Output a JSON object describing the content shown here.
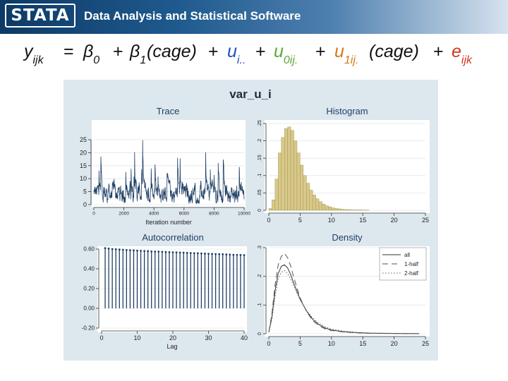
{
  "header": {
    "logo_text": "STATA",
    "tagline": "Data Analysis and Statistical Software",
    "colors": {
      "dark": "#0d3a66",
      "light": "#d7e3ef"
    }
  },
  "equation": {
    "y": "y",
    "y_sub": "ijk",
    "b0": "β",
    "b0_sub": "0",
    "b1": "β",
    "b1_sub": "1",
    "cage": "(cage)",
    "u": "u",
    "u_sub": "i..",
    "u0": "u",
    "u0_sub": "0ij.",
    "u1": "u",
    "u1_sub": "1ij.",
    "e": "e",
    "e_sub": "ijk",
    "colors": {
      "u": "#1f4fbf",
      "u0": "#5aa832",
      "u1": "#d07a12",
      "e": "#d0341c"
    }
  },
  "chart_data": [
    {
      "type": "line",
      "panel_title": "Trace",
      "figure_title": "var_u_i",
      "xlabel": "Iteration number",
      "xlim": [
        0,
        10000
      ],
      "ylim": [
        0,
        25
      ],
      "xticks": [
        "0",
        "2000",
        "4000",
        "6000",
        "8000",
        "10000"
      ],
      "yticks": [
        "0",
        "5",
        "10",
        "15",
        "20",
        "25"
      ],
      "typical_range": [
        1,
        10
      ],
      "approx_peak": 25,
      "color": "#1f3f66"
    },
    {
      "type": "bar",
      "panel_title": "Histogram",
      "xlim": [
        0,
        25
      ],
      "ylim": [
        0,
        0.25
      ],
      "xticks": [
        "0",
        "5",
        "10",
        "15",
        "20",
        "25"
      ],
      "yticks": [
        "0",
        ".05",
        ".1",
        ".15",
        ".2",
        ".25"
      ],
      "bin_width": 0.5,
      "values": [
        0.005,
        0.03,
        0.09,
        0.165,
        0.21,
        0.235,
        0.24,
        0.23,
        0.2,
        0.165,
        0.13,
        0.1,
        0.078,
        0.058,
        0.044,
        0.033,
        0.025,
        0.018,
        0.013,
        0.01,
        0.007,
        0.005,
        0.004,
        0.003,
        0.002,
        0.002,
        0.001,
        0.001,
        0.001,
        0.001,
        0.0005,
        0.0005
      ],
      "color": "#d8c98a",
      "edge": "#9a8a48"
    },
    {
      "type": "bar",
      "panel_title": "Autocorrelation",
      "xlabel": "Lag",
      "xlim": [
        0,
        40
      ],
      "ylim": [
        -0.2,
        0.6
      ],
      "xticks": [
        "0",
        "10",
        "20",
        "30",
        "40"
      ],
      "yticks": [
        "-0.20",
        "0.00",
        "0.20",
        "0.40",
        "0.60"
      ],
      "lags": [
        1,
        2,
        3,
        4,
        5,
        6,
        7,
        8,
        9,
        10,
        11,
        12,
        13,
        14,
        15,
        16,
        17,
        18,
        19,
        20,
        21,
        22,
        23,
        24,
        25,
        26,
        27,
        28,
        29,
        30,
        31,
        32,
        33,
        34,
        35,
        36,
        37,
        38,
        39,
        40
      ],
      "values": [
        0.61,
        0.605,
        0.6,
        0.598,
        0.595,
        0.593,
        0.59,
        0.588,
        0.586,
        0.584,
        0.582,
        0.58,
        0.579,
        0.577,
        0.575,
        0.574,
        0.572,
        0.57,
        0.569,
        0.567,
        0.566,
        0.564,
        0.563,
        0.561,
        0.56,
        0.558,
        0.557,
        0.555,
        0.554,
        0.552,
        0.551,
        0.549,
        0.548,
        0.547,
        0.545,
        0.544,
        0.542,
        0.541,
        0.54,
        0.538
      ],
      "color": "#1f3f66"
    },
    {
      "type": "line",
      "panel_title": "Density",
      "xlim": [
        0,
        25
      ],
      "ylim": [
        0,
        0.3
      ],
      "xticks": [
        "0",
        "5",
        "10",
        "15",
        "20",
        "25"
      ],
      "yticks": [
        "0",
        ".1",
        ".2",
        ".3"
      ],
      "x": [
        0,
        0.5,
        1,
        1.5,
        2,
        2.5,
        3,
        3.5,
        4,
        5,
        6,
        7,
        8,
        9,
        10,
        12,
        14,
        16,
        18,
        20,
        22,
        24
      ],
      "series": [
        {
          "name": "all",
          "values": [
            0.005,
            0.06,
            0.15,
            0.21,
            0.235,
            0.24,
            0.23,
            0.205,
            0.175,
            0.12,
            0.08,
            0.05,
            0.032,
            0.02,
            0.013,
            0.007,
            0.004,
            0.002,
            0.0015,
            0.001,
            0.0005,
            0.0003
          ],
          "color": "#333333",
          "dash": ""
        },
        {
          "name": "1-half",
          "values": [
            0.005,
            0.07,
            0.17,
            0.24,
            0.27,
            0.28,
            0.265,
            0.235,
            0.195,
            0.125,
            0.078,
            0.046,
            0.028,
            0.017,
            0.011,
            0.006,
            0.003,
            0.0015,
            0.001,
            0.0007,
            0.0004,
            0.0002
          ],
          "color": "#555555",
          "dash": "8,5"
        },
        {
          "name": "2-half",
          "values": [
            0.005,
            0.05,
            0.13,
            0.19,
            0.215,
            0.22,
            0.21,
            0.19,
            0.165,
            0.118,
            0.082,
            0.055,
            0.037,
            0.024,
            0.016,
            0.009,
            0.005,
            0.003,
            0.002,
            0.0012,
            0.0007,
            0.0004
          ],
          "color": "#666666",
          "dash": "1.5,2.5"
        }
      ],
      "legend": "top-right"
    }
  ]
}
